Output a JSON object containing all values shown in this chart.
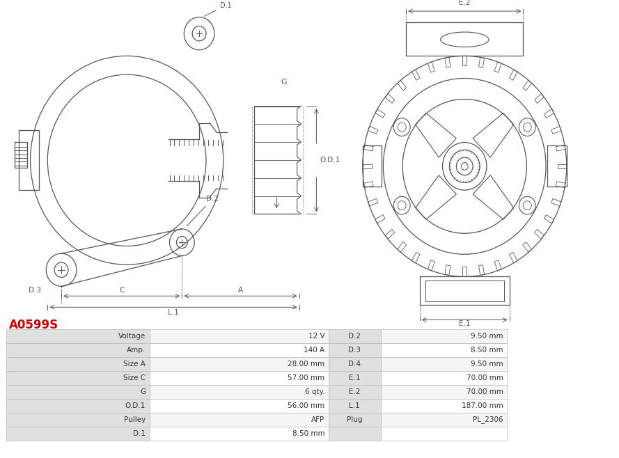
{
  "title": "A0599S",
  "title_color": "#cc0000",
  "table_headers_left": [
    "Voltage",
    "Amp.",
    "Size A",
    "Size C",
    "G",
    "O.D.1",
    "Pulley",
    "D.1"
  ],
  "table_values_left": [
    "12 V",
    "140 A",
    "28.00 mm",
    "57.00 mm",
    "6 qty.",
    "56.00 mm",
    "AFP",
    "8.50 mm"
  ],
  "table_headers_right": [
    "D.2",
    "D.3",
    "D.4",
    "E.1",
    "E.2",
    "L.1",
    "Plug",
    ""
  ],
  "table_values_right": [
    "9.50 mm",
    "8.50 mm",
    "9.50 mm",
    "70.00 mm",
    "70.00 mm",
    "187.00 mm",
    "PL_2306",
    ""
  ],
  "bg_color_header": "#e0e0e0",
  "bg_color_value": "#ffffff",
  "bg_color_alt": "#f5f5f5",
  "border_color": "#bbbbbb",
  "text_color": "#333333",
  "image_bg": "#ffffff",
  "line_color": "#555555"
}
